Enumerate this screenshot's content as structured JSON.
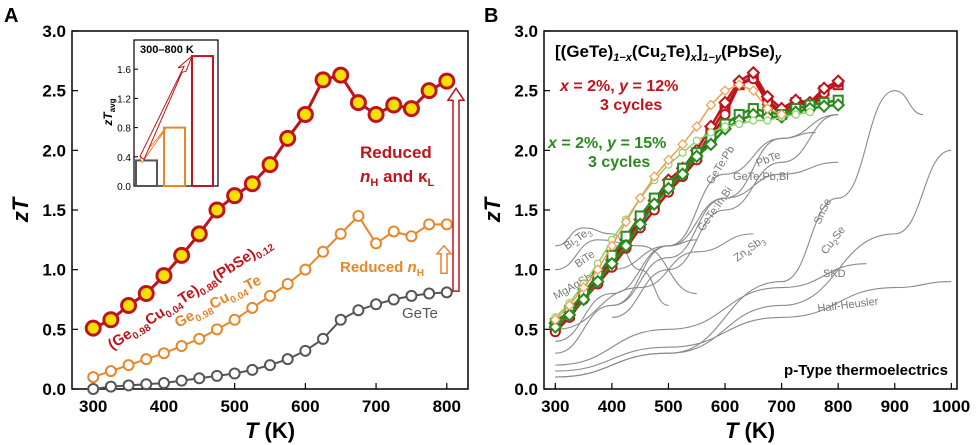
{
  "chart_data": [
    {
      "panel_label": "A",
      "type": "line",
      "title": "",
      "xlabel_italic": "T",
      "xlabel_unit": " (K)",
      "ylabel": "zT",
      "xlim": [
        270,
        830
      ],
      "ylim": [
        0,
        3.0
      ],
      "xticks": [
        300,
        400,
        500,
        600,
        700,
        800
      ],
      "yticks": [
        0.0,
        0.5,
        1.0,
        1.5,
        2.0,
        2.5,
        3.0
      ],
      "series": [
        {
          "name": "GeTe",
          "color": "#555555",
          "x": [
            300,
            325,
            350,
            375,
            400,
            425,
            450,
            475,
            500,
            525,
            550,
            575,
            600,
            625,
            650,
            675,
            700,
            725,
            750,
            775,
            800
          ],
          "values": [
            0.0,
            0.02,
            0.03,
            0.04,
            0.05,
            0.07,
            0.09,
            0.11,
            0.13,
            0.16,
            0.2,
            0.25,
            0.32,
            0.42,
            0.58,
            0.66,
            0.71,
            0.75,
            0.78,
            0.8,
            0.81
          ]
        },
        {
          "name": "Ge0.98Cu0.04Te",
          "color": "#e8872a",
          "x": [
            300,
            325,
            350,
            375,
            400,
            425,
            450,
            475,
            500,
            525,
            550,
            575,
            600,
            625,
            650,
            675,
            700,
            725,
            750,
            775,
            800
          ],
          "values": [
            0.1,
            0.15,
            0.2,
            0.25,
            0.3,
            0.36,
            0.42,
            0.5,
            0.58,
            0.68,
            0.78,
            0.88,
            1.0,
            1.15,
            1.3,
            1.45,
            1.22,
            1.32,
            1.28,
            1.38,
            1.38
          ]
        },
        {
          "name": "(Ge0.98Cu0.04Te)0.88(PbSe)0.12",
          "color": "#c0141c",
          "x": [
            300,
            325,
            350,
            375,
            400,
            425,
            450,
            475,
            500,
            525,
            550,
            575,
            600,
            625,
            650,
            675,
            700,
            725,
            750,
            775,
            800
          ],
          "values": [
            0.51,
            0.58,
            0.7,
            0.8,
            0.95,
            1.12,
            1.3,
            1.5,
            1.62,
            1.72,
            1.88,
            2.1,
            2.3,
            2.59,
            2.63,
            2.4,
            2.3,
            2.38,
            2.35,
            2.5,
            2.58
          ]
        }
      ],
      "labels": {
        "gete": "GeTe",
        "cu_main": "Ge",
        "cu_sub1": "0.98",
        "cu_mid": "Cu",
        "cu_sub2": "0.04",
        "cu_end": "Te",
        "pb_open": "(Ge",
        "pb_sub1": "0.98",
        "pb_cu": "Cu",
        "pb_sub2": "0.04",
        "pb_te": "Te)",
        "pb_sub3": "0.88",
        "pb_pbse": "(PbSe)",
        "pb_sub4": "0.12",
        "reduced_nh_orange": "Reduced ",
        "reduced_nh_orange_n": "n",
        "reduced_nh_orange_sub": "H",
        "reduced_red_line1": "Reduced",
        "reduced_red_n": "n",
        "reduced_red_sub": "H",
        "reduced_red_and": " and κ",
        "reduced_red_sub2": "L"
      },
      "inset": {
        "title": "300–800 K",
        "ylabel": "zT",
        "ylabel_sub": "avg",
        "ylim": [
          0,
          2.0
        ],
        "yticks": [
          0.0,
          0.4,
          0.8,
          1.2,
          1.6
        ],
        "bars": [
          {
            "name": "GeTe",
            "value": 0.35,
            "color": "#555555"
          },
          {
            "name": "Ge0.98Cu0.04Te",
            "value": 0.8,
            "color": "#e8872a"
          },
          {
            "name": "(Ge0.98Cu0.04Te)0.88(PbSe)0.12",
            "value": 1.78,
            "color": "#c0141c"
          }
        ]
      }
    },
    {
      "panel_label": "B",
      "type": "line",
      "title": "[(GeTe)1−x(Cu2Te)x]1−y(PbSe)y",
      "title_parts": {
        "a": "[(GeTe)",
        "b": "1−x",
        "c": "(Cu",
        "d": "2",
        "e": "Te)",
        "f": "x",
        "g": "]",
        "h": "1−y",
        "i": "(PbSe)",
        "j": "y"
      },
      "xlabel_italic": "T",
      "xlabel_unit": " (K)",
      "ylabel": "zT",
      "xlim": [
        280,
        1010
      ],
      "ylim": [
        0,
        3.0
      ],
      "xticks": [
        300,
        400,
        500,
        600,
        700,
        800,
        900,
        1000
      ],
      "yticks": [
        0.0,
        0.5,
        1.0,
        1.5,
        2.0,
        2.5,
        3.0
      ],
      "annotation_red": {
        "x_label": "x",
        "eq1": " = 2%, ",
        "y_label": "y",
        "eq2": " = 12%",
        "cycles": "3 cycles",
        "color": "#c0141c"
      },
      "annotation_green": {
        "x_label": "x",
        "eq1": " = 2%, ",
        "y_label": "y",
        "eq2": " = 15%",
        "cycles": "3 cycles",
        "color": "#2a8a1e"
      },
      "footer": "p-Type thermoelectrics",
      "reference_curves": [
        {
          "name": "GeTe:Pb",
          "x": [
            400,
            500,
            600,
            700,
            760
          ],
          "values": [
            0.7,
            1.2,
            1.8,
            2.1,
            2.15
          ]
        },
        {
          "name": "PbTe",
          "x": [
            300,
            400,
            500,
            600,
            700,
            800
          ],
          "values": [
            0.3,
            0.7,
            1.1,
            1.6,
            2.1,
            2.3
          ]
        },
        {
          "name": "GeTe:Pb,Bi",
          "x": [
            400,
            500,
            600,
            700,
            800
          ],
          "values": [
            0.6,
            1.0,
            1.5,
            1.9,
            2.3
          ]
        },
        {
          "name": "GeTe:In,Bi",
          "x": [
            300,
            400,
            500,
            600,
            700,
            800
          ],
          "values": [
            0.4,
            0.8,
            1.2,
            1.6,
            1.8,
            1.9
          ]
        },
        {
          "name": "SnSe",
          "x": [
            300,
            500,
            700,
            800,
            900,
            950
          ],
          "values": [
            0.1,
            0.3,
            0.9,
            1.6,
            2.5,
            2.3
          ]
        },
        {
          "name": "Cu2Se",
          "x": [
            300,
            500,
            700,
            900,
            1000
          ],
          "values": [
            0.1,
            0.3,
            0.7,
            1.3,
            2.0
          ]
        },
        {
          "name": "Zn4Sb3",
          "x": [
            300,
            450,
            550,
            650
          ],
          "values": [
            0.5,
            0.85,
            1.15,
            1.3
          ]
        },
        {
          "name": "Bi2Te3",
          "x": [
            300,
            350,
            400,
            450,
            500
          ],
          "values": [
            1.2,
            1.35,
            1.3,
            1.0,
            0.7
          ]
        },
        {
          "name": "Bi2Te3 B",
          "x": [
            300,
            375,
            450,
            550
          ],
          "values": [
            1.0,
            1.25,
            1.2,
            0.8
          ]
        },
        {
          "name": "MgAgSb",
          "x": [
            300,
            400,
            500,
            550
          ],
          "values": [
            0.6,
            1.0,
            1.2,
            1.25
          ]
        },
        {
          "name": "SKD",
          "x": [
            300,
            500,
            700,
            850
          ],
          "values": [
            0.2,
            0.5,
            0.85,
            1.05
          ]
        },
        {
          "name": "Half-Heusler",
          "x": [
            300,
            500,
            700,
            900,
            1000
          ],
          "values": [
            0.15,
            0.35,
            0.6,
            0.85,
            0.9
          ]
        }
      ],
      "ref_labels": {
        "getepb": "GeTe:Pb",
        "pbte": "PbTe",
        "getepbbi": "GeTe:Pb,Bi",
        "geteinbi": "GeTe:In,Bi",
        "snse": "SnSe",
        "cu2se": "Cu",
        "cu2se_sub": "2",
        "cu2se_end": "Se",
        "zn4sb3": "Zn",
        "zn4sb3_sub": "4",
        "zn4sb3_mid": "Sb",
        "zn4sb3_sub2": "3",
        "bi2te3": "Bi",
        "bi2te3_sub": "2",
        "bi2te3_mid": "Te",
        "bi2te3_sub2": "3",
        "bite_b": "Bi",
        "bite_b_mid": "Te",
        "mgagsb": "MgAgSb",
        "skd": "SKD",
        "halfheusler": "Half-Heusler"
      },
      "series": [
        {
          "name": "red x=2% y=12% run 1",
          "color": "#c0141c",
          "marker": "square",
          "x": [
            300,
            325,
            350,
            375,
            400,
            425,
            450,
            475,
            500,
            525,
            550,
            575,
            600,
            625,
            650,
            675,
            700,
            725,
            750,
            775,
            800
          ],
          "values": [
            0.52,
            0.62,
            0.78,
            0.92,
            1.05,
            1.22,
            1.38,
            1.55,
            1.72,
            1.82,
            1.95,
            2.15,
            2.35,
            2.55,
            2.62,
            2.42,
            2.32,
            2.4,
            2.38,
            2.5,
            2.55
          ]
        },
        {
          "name": "red x=2% y=12% run 2",
          "color": "#c0141c",
          "marker": "circle",
          "x": [
            300,
            325,
            350,
            375,
            400,
            425,
            450,
            475,
            500,
            525,
            550,
            575,
            600,
            625,
            650,
            675,
            700,
            725,
            750,
            775,
            800
          ],
          "values": [
            0.48,
            0.6,
            0.75,
            0.88,
            1.02,
            1.18,
            1.35,
            1.5,
            1.65,
            1.78,
            1.92,
            2.1,
            2.3,
            2.55,
            2.6,
            2.4,
            2.3,
            2.37,
            2.35,
            2.48,
            2.57
          ]
        },
        {
          "name": "red x=2% y=12% run 3",
          "color": "#c0141c",
          "marker": "diamond",
          "x": [
            300,
            325,
            350,
            375,
            400,
            425,
            450,
            475,
            500,
            525,
            550,
            575,
            600,
            625,
            650,
            675,
            700,
            725,
            750,
            775,
            800
          ],
          "values": [
            0.55,
            0.65,
            0.8,
            0.95,
            1.08,
            1.25,
            1.42,
            1.58,
            1.75,
            1.85,
            2.0,
            2.2,
            2.4,
            2.58,
            2.65,
            2.45,
            2.35,
            2.42,
            2.4,
            2.52,
            2.58
          ]
        },
        {
          "name": "green x=2% y=15% run 1",
          "color": "#2a8a1e",
          "marker": "square",
          "x": [
            300,
            325,
            350,
            375,
            400,
            425,
            450,
            475,
            500,
            525,
            550,
            575,
            600,
            625,
            650,
            675,
            700,
            725,
            750,
            775,
            800
          ],
          "values": [
            0.55,
            0.66,
            0.8,
            0.95,
            1.12,
            1.28,
            1.45,
            1.6,
            1.72,
            1.85,
            1.98,
            2.1,
            2.22,
            2.3,
            2.35,
            2.32,
            2.3,
            2.35,
            2.38,
            2.4,
            2.42
          ]
        },
        {
          "name": "green x=2% y=15% run 2",
          "color": "#2a8a1e",
          "marker": "diamond",
          "x": [
            300,
            325,
            350,
            375,
            400,
            425,
            450,
            475,
            500,
            525,
            550,
            575,
            600,
            625,
            650,
            675,
            700,
            725,
            750,
            775,
            800
          ],
          "values": [
            0.52,
            0.62,
            0.75,
            0.9,
            1.05,
            1.2,
            1.38,
            1.55,
            1.68,
            1.8,
            1.95,
            2.05,
            2.18,
            2.25,
            2.3,
            2.28,
            2.28,
            2.32,
            2.35,
            2.37,
            2.38
          ]
        },
        {
          "name": "light green run",
          "color": "#8fcf6a",
          "marker": "circle",
          "x": [
            300,
            325,
            350,
            375,
            400,
            425,
            450,
            475,
            500,
            525,
            550,
            575,
            600,
            625,
            650,
            675,
            700,
            725,
            750
          ],
          "values": [
            0.6,
            0.72,
            0.88,
            1.05,
            1.25,
            1.42,
            1.6,
            1.75,
            1.88,
            1.98,
            2.08,
            2.15,
            2.2,
            2.22,
            2.25,
            2.25,
            2.28,
            2.3,
            2.32
          ]
        },
        {
          "name": "light orange run",
          "color": "#f0a050",
          "marker": "diamond",
          "x": [
            300,
            325,
            350,
            375,
            400,
            425,
            450,
            475,
            500,
            525,
            550,
            575,
            600,
            625,
            650,
            675,
            700
          ],
          "values": [
            0.58,
            0.7,
            0.85,
            1.0,
            1.2,
            1.4,
            1.6,
            1.78,
            1.92,
            2.05,
            2.2,
            2.38,
            2.5,
            2.55,
            2.5,
            2.35,
            2.3
          ]
        }
      ]
    }
  ]
}
